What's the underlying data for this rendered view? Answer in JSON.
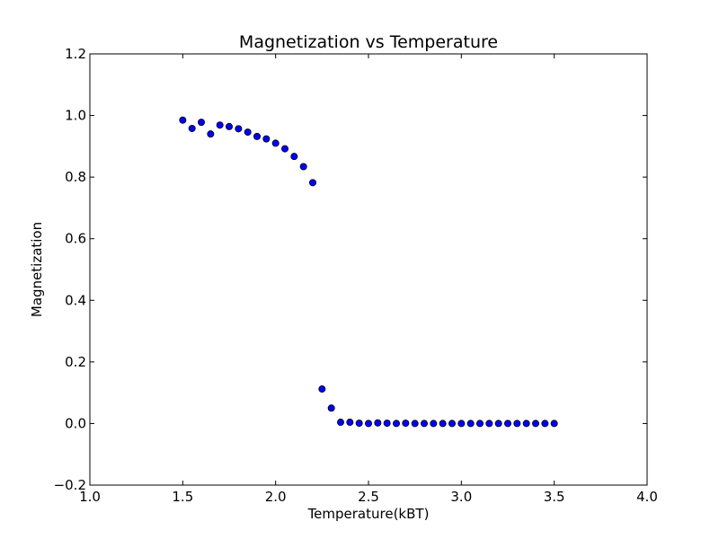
{
  "chart_data": {
    "type": "scatter",
    "title": "Magnetization vs Temperature",
    "xlabel": "Temperature(kBT)",
    "ylabel": "Magnetization",
    "xlim": [
      1.0,
      4.0
    ],
    "ylim": [
      -0.2,
      1.2
    ],
    "xticks": [
      "1.0",
      "1.5",
      "2.0",
      "2.5",
      "3.0",
      "3.5",
      "4.0"
    ],
    "yticks": [
      "−0.2",
      "0.0",
      "0.2",
      "0.4",
      "0.6",
      "0.8",
      "1.0",
      "1.2"
    ],
    "grid": false,
    "marker_color": "#0000ff",
    "series": [
      {
        "x": [
          1.5,
          1.55,
          1.6,
          1.65,
          1.7,
          1.75,
          1.8,
          1.85,
          1.9,
          1.95,
          2.0,
          2.05,
          2.1,
          2.15,
          2.2,
          2.25,
          2.3,
          2.35,
          2.4,
          2.45,
          2.5,
          2.55,
          2.6,
          2.65,
          2.7,
          2.75,
          2.8,
          2.85,
          2.9,
          2.95,
          3.0,
          3.05,
          3.1,
          3.15,
          3.2,
          3.25,
          3.3,
          3.35,
          3.4,
          3.45,
          3.5
        ],
        "y": [
          0.985,
          0.958,
          0.978,
          0.94,
          0.969,
          0.964,
          0.957,
          0.946,
          0.932,
          0.924,
          0.91,
          0.892,
          0.867,
          0.834,
          0.782,
          0.112,
          0.05,
          0.004,
          0.004,
          0.001,
          0.0,
          0.002,
          0.001,
          0.0,
          0.001,
          0.0,
          0.0,
          0.0,
          0.0,
          0.0,
          0.0,
          0.0,
          0.0,
          0.0,
          0.0,
          0.0,
          0.0,
          0.0,
          0.0,
          0.0,
          0.0
        ]
      }
    ]
  }
}
